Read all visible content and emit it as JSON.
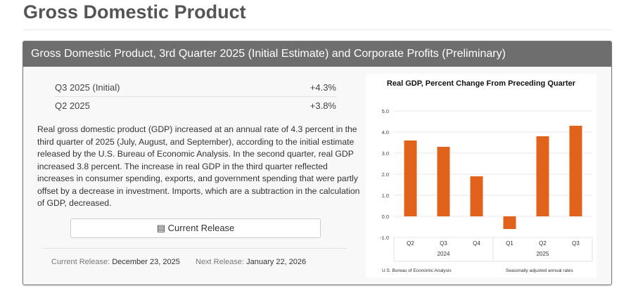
{
  "page_title": "Gross Domestic Product",
  "panel": {
    "header": "Gross Domestic Product, 3rd Quarter 2025 (Initial Estimate) and Corporate Profits (Preliminary)",
    "stats": [
      {
        "label": "Q3 2025 (Initial)",
        "value": "+4.3%"
      },
      {
        "label": "Q2 2025",
        "value": "+3.8%"
      }
    ],
    "description": "Real gross domestic product (GDP) increased at an annual rate of 4.3 percent in the third quarter of 2025 (July, August, and September), according to the initial estimate released by the U.S. Bureau of Economic Analysis. In the second quarter, real GDP increased 3.8 percent. The increase in real GDP in the third quarter reflected increases in consumer spending, exports, and government spending that were partly offset by a decrease in investment. Imports, which are a subtraction in the calculation of GDP, decreased.",
    "button": {
      "label": "Current Release",
      "icon": "newspaper-icon"
    },
    "current_release": {
      "label": "Current Release:",
      "value": "December 23, 2025"
    },
    "next_release": {
      "label": "Next Release:",
      "value": "January 22, 2026"
    }
  },
  "chart_data": {
    "type": "bar",
    "title": "Real GDP, Percent Change From Preceding Quarter",
    "categories": [
      "Q2",
      "Q3",
      "Q4",
      "Q1",
      "Q2",
      "Q3"
    ],
    "groups": [
      {
        "label": "2024",
        "count": 3
      },
      {
        "label": "2025",
        "count": 3
      }
    ],
    "values": [
      3.6,
      3.3,
      1.9,
      -0.6,
      3.8,
      4.3
    ],
    "ylim": [
      -1.0,
      5.0
    ],
    "yticks": [
      "5.0",
      "4.0",
      "3.0",
      "2.0",
      "1.0",
      "0.0",
      "-1.0"
    ],
    "grid": true,
    "bar_color": "#e0621b",
    "source": "U.S. Bureau of Economic Analysis",
    "note": "Seasonally adjusted annual rates"
  }
}
